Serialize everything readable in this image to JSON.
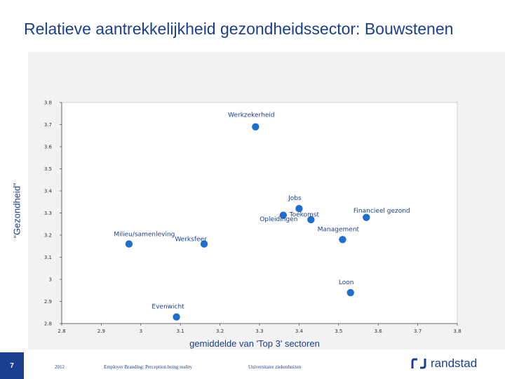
{
  "title": "Relatieve aantrekkelijkheid gezondheidssector: Bouwstenen",
  "footer": {
    "page_number": "7",
    "year": "2012",
    "subtitle": "Employer Branding: Perception being reality",
    "client": "Universitaire ziekenhuizen",
    "brand": "randstad",
    "logo_icon": "randstad-logo-icon"
  },
  "colors": {
    "accent": "#1a3f8f",
    "point": "#1f6fd1",
    "plot_bg": "#f2f2f2"
  },
  "chart_data": {
    "type": "scatter",
    "title": "Relatieve aantrekkelijkheid gezondheidssector: Bouwstenen",
    "xlabel": "gemiddelde van 'Top 3' sectoren",
    "ylabel": "“Gezondheid”",
    "xlim": [
      2.8,
      3.8
    ],
    "ylim": [
      2.8,
      3.8
    ],
    "x_ticks": [
      "2.8",
      "2.9",
      "3",
      "3.1",
      "3.2",
      "3.3",
      "3.4",
      "3.5",
      "3.6",
      "3.7",
      "3.8"
    ],
    "y_ticks": [
      "3.8",
      "3.7",
      "3.6",
      "3.5",
      "3.4",
      "3.3",
      "3.2",
      "3.1",
      "3",
      "2.9",
      "2.8"
    ],
    "reference_line": {
      "from": [
        2.8,
        2.8
      ],
      "to": [
        3.8,
        3.8
      ]
    },
    "grid": false,
    "points": [
      {
        "label": "Werkzekerheid",
        "x": 3.29,
        "y": 3.69
      },
      {
        "label": "Jobs",
        "x": 3.4,
        "y": 3.32
      },
      {
        "label": "Toekomst",
        "x": 3.36,
        "y": 3.29
      },
      {
        "label": "Financieel gezond",
        "x": 3.57,
        "y": 3.28
      },
      {
        "label": "Opleidingen",
        "x": 3.43,
        "y": 3.27
      },
      {
        "label": "Management",
        "x": 3.51,
        "y": 3.18
      },
      {
        "label": "Milieu/samenleving",
        "x": 2.97,
        "y": 3.16
      },
      {
        "label": "Werksfeer",
        "x": 3.16,
        "y": 3.16
      },
      {
        "label": "Loon",
        "x": 3.53,
        "y": 2.94
      },
      {
        "label": "Evenwicht",
        "x": 3.09,
        "y": 2.83
      }
    ]
  }
}
